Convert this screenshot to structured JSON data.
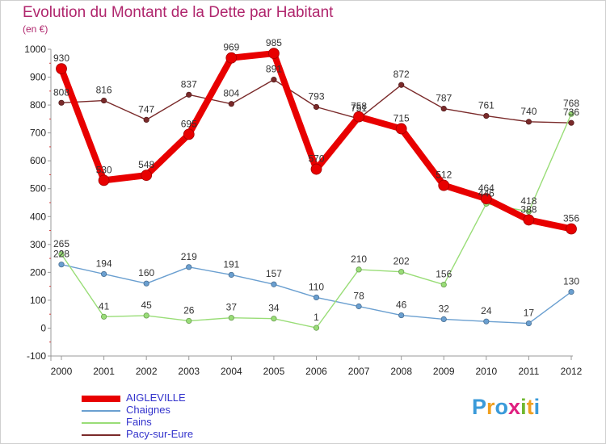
{
  "title": "Evolution du Montant de la Dette par Habitant",
  "subtitle": "(en €)",
  "logo": {
    "letters": [
      "P",
      "r",
      "o",
      "x",
      "i",
      "t",
      "i"
    ],
    "colors": [
      "#3a9ad9",
      "#f0a020",
      "#3a9ad9",
      "#e02080",
      "#70b830",
      "#f0a020",
      "#3a9ad9"
    ]
  },
  "chart_data": {
    "type": "line",
    "x": [
      "2000",
      "2001",
      "2002",
      "2003",
      "2004",
      "2005",
      "2006",
      "2007",
      "2008",
      "2009",
      "2010",
      "2011",
      "2012"
    ],
    "ylim": [
      -100,
      1000
    ],
    "yticks": [
      "-100",
      "0",
      "100",
      "200",
      "300",
      "400",
      "500",
      "600",
      "700",
      "800",
      "900",
      "1000"
    ],
    "legend_position": "bottom-left",
    "series": [
      {
        "name": "AIGLEVILLE",
        "color": "#e80000",
        "values": [
          930,
          530,
          548,
          695,
          969,
          985,
          570,
          758,
          715,
          512,
          464,
          388,
          356
        ],
        "labels": [
          "930",
          "530",
          "548",
          "695",
          "969",
          "985",
          "570",
          "758",
          "715",
          "512",
          "464",
          "388",
          "356"
        ]
      },
      {
        "name": "Chaignes",
        "color": "#6a9fd0",
        "values": [
          228,
          194,
          160,
          219,
          191,
          157,
          110,
          78,
          46,
          32,
          24,
          17,
          130
        ],
        "labels": [
          "228",
          "194",
          "160",
          "219",
          "191",
          "157",
          "110",
          "78",
          "46",
          "32",
          "24",
          "17",
          "130"
        ]
      },
      {
        "name": "Fains",
        "color": "#99dd77",
        "values": [
          265,
          41,
          45,
          26,
          37,
          34,
          1,
          210,
          202,
          156,
          446,
          418,
          768
        ],
        "labels": [
          "265",
          "41",
          "45",
          "26",
          "37",
          "34",
          "1",
          "210",
          "202",
          "156",
          "446",
          "418",
          "768"
        ]
      },
      {
        "name": "Pacy-sur-Eure",
        "color": "#7a2a2a",
        "values": [
          808,
          816,
          747,
          837,
          804,
          891,
          793,
          751,
          872,
          787,
          761,
          740,
          736
        ],
        "labels": [
          "808",
          "816",
          "747",
          "837",
          "804",
          "891",
          "793",
          "751",
          "872",
          "787",
          "761",
          "740",
          "736"
        ]
      }
    ]
  }
}
